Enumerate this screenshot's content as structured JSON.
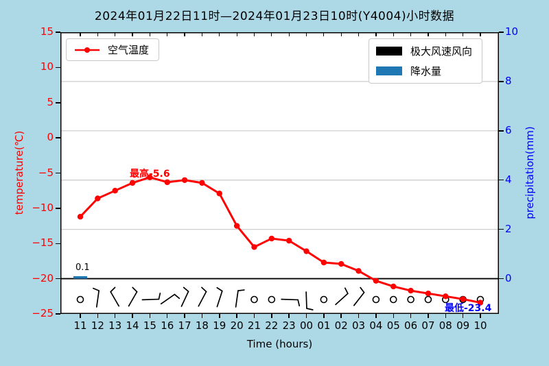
{
  "colors": {
    "figure_bg": "#ADD8E6",
    "plot_bg": "#FFFFFF",
    "grid": "#C8C8C8",
    "zero_line": "#000000",
    "left_axis": "#FF0000",
    "right_axis": "#0000FF",
    "x_axis": "#000000"
  },
  "chart_data": {
    "type": "mixed line+bar+wind_barbs",
    "title": "2024年01月22日11时—2024年01月23日10时(Y4004)小时数据",
    "xlabel": "Time (hours)",
    "ylabel_left": "temperature(℃)",
    "ylabel_right": "precipitation(mm)",
    "ylim_left": [
      -25,
      15
    ],
    "ylim_right": [
      -1.43,
      10
    ],
    "yticks_left": [
      15,
      10,
      5,
      0,
      -5,
      -10,
      -15,
      -20,
      -25
    ],
    "yticks_right": [
      10,
      8,
      6,
      4,
      2,
      0
    ],
    "grid": true,
    "legend_positions": [
      "upper left",
      "upper right"
    ],
    "x": [
      "11",
      "12",
      "13",
      "14",
      "15",
      "16",
      "17",
      "18",
      "19",
      "20",
      "21",
      "22",
      "23",
      "00",
      "01",
      "02",
      "03",
      "04",
      "05",
      "06",
      "07",
      "08",
      "09",
      "10"
    ],
    "series": [
      {
        "name": "空气温度",
        "type": "line",
        "axis": "left",
        "color": "#FF0000",
        "marker": "o",
        "values": [
          -11.2,
          -8.6,
          -7.5,
          -6.4,
          -5.6,
          -6.3,
          -6.0,
          -6.4,
          -7.9,
          -12.5,
          -15.5,
          -14.3,
          -14.6,
          -16.1,
          -17.7,
          -17.9,
          -18.9,
          -20.3,
          -21.1,
          -21.7,
          -22.1,
          -22.5,
          -22.9,
          -23.4
        ]
      },
      {
        "name": "降水量",
        "type": "bar",
        "axis": "right",
        "color": "#1F77B4",
        "values": [
          0.1,
          0,
          0,
          0,
          0,
          0,
          0,
          0,
          0,
          0,
          0,
          0,
          0,
          0,
          0,
          0,
          0,
          0,
          0,
          0,
          0,
          0,
          0,
          0
        ]
      },
      {
        "name": "极大风速风向",
        "type": "wind_barbs",
        "color": "#000000",
        "barbs": [
          {
            "type": "calm"
          },
          {
            "type": "barb",
            "angle": 8,
            "feather": "left"
          },
          {
            "type": "barb",
            "angle": -30,
            "feather": "right"
          },
          {
            "type": "barb",
            "angle": 30,
            "feather": "left"
          },
          {
            "type": "barb",
            "angle": 88,
            "feather": "left"
          },
          {
            "type": "barb",
            "angle": 55,
            "feather": "right"
          },
          {
            "type": "barb",
            "angle": 25,
            "feather": "left"
          },
          {
            "type": "barb",
            "angle": 28,
            "feather": "left"
          },
          {
            "type": "barb",
            "angle": 18,
            "feather": "left"
          },
          {
            "type": "barb",
            "angle": 8,
            "feather": "right"
          },
          {
            "type": "calm"
          },
          {
            "type": "calm"
          },
          {
            "type": "barb",
            "angle": 92,
            "feather": "right"
          },
          {
            "type": "barb",
            "angle": 178,
            "feather": "left"
          },
          {
            "type": "calm"
          },
          {
            "type": "barb",
            "angle": 48,
            "feather": "left"
          },
          {
            "type": "barb",
            "angle": 38,
            "feather": "left"
          },
          {
            "type": "calm"
          },
          {
            "type": "calm"
          },
          {
            "type": "calm"
          },
          {
            "type": "calm"
          },
          {
            "type": "calm"
          },
          {
            "type": "calm"
          },
          {
            "type": "calm"
          }
        ]
      }
    ],
    "annotations": [
      {
        "text": "最高-5.6",
        "color": "#FF0000",
        "target": "maximum temperature at 15时"
      },
      {
        "text": "最低-23.4",
        "color": "#0000FF",
        "target": "minimum temperature at 10时"
      },
      {
        "text": "0.1",
        "color": "#000000",
        "target": "precipitation bar at 11时"
      }
    ]
  }
}
